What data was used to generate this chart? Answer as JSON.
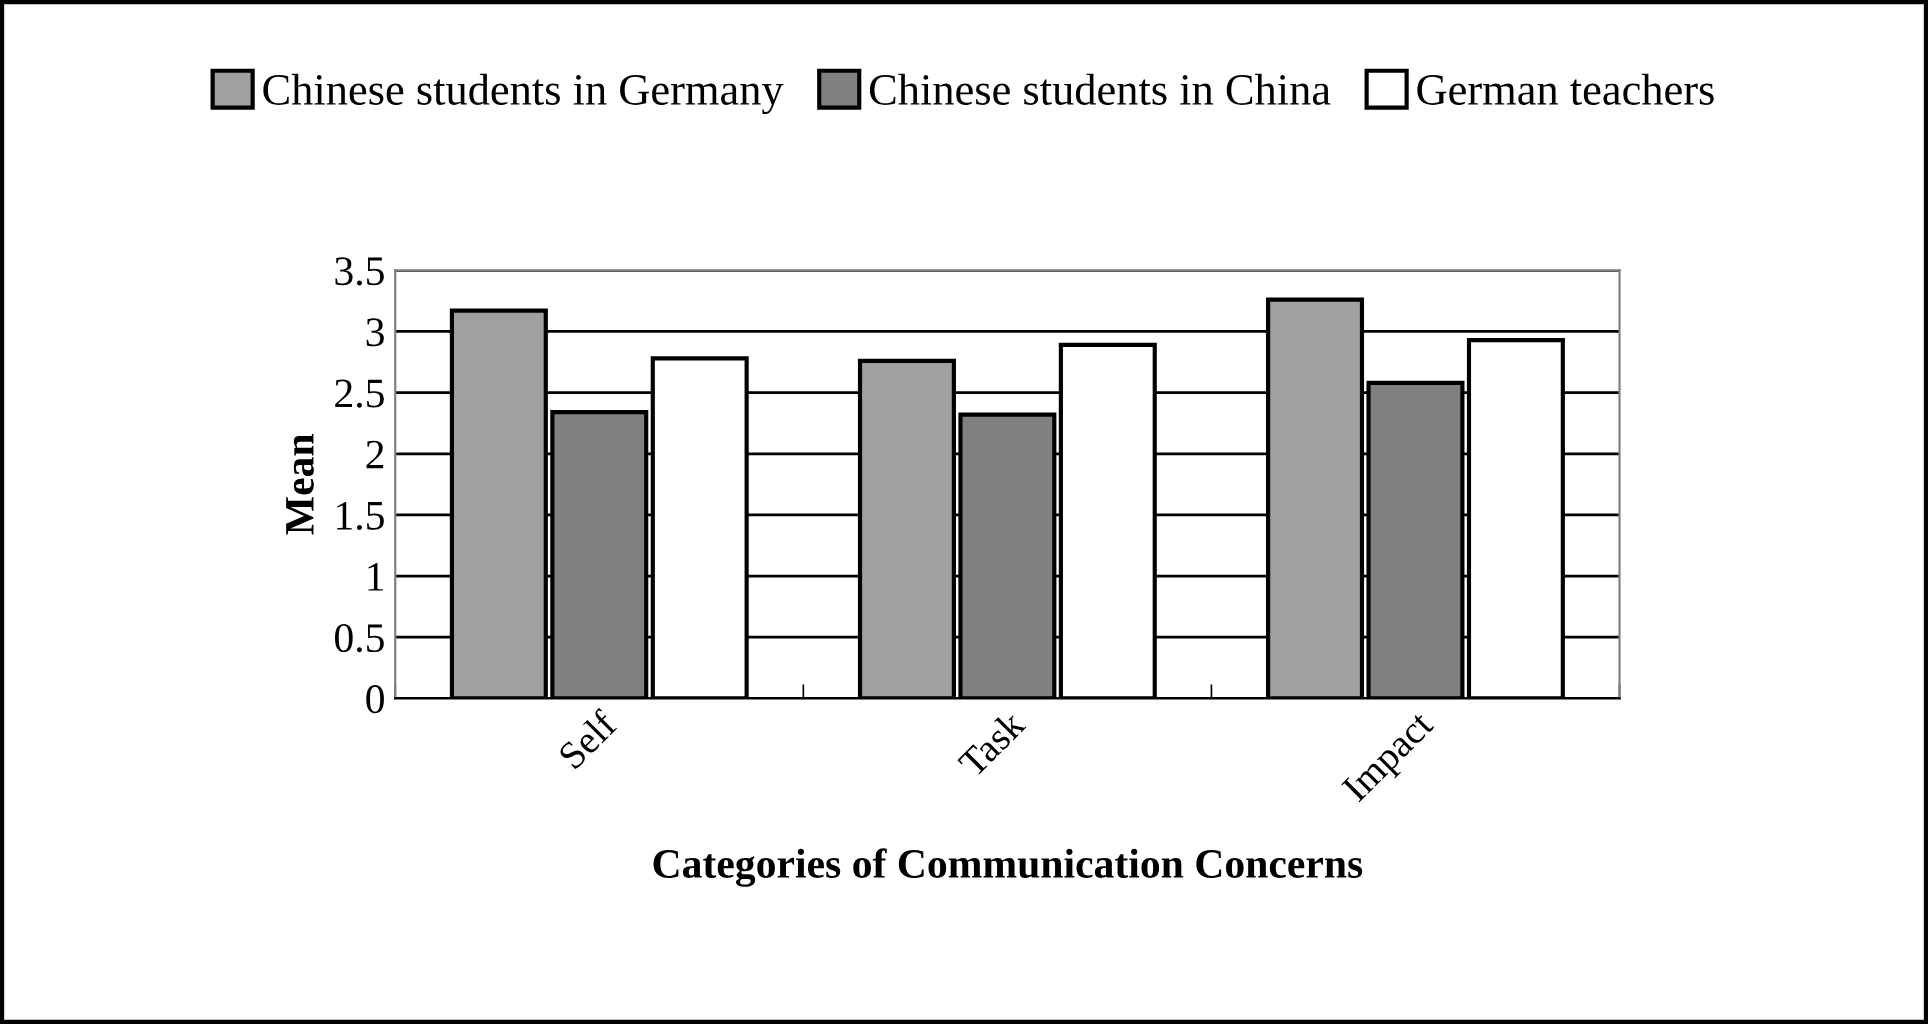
{
  "chart_data": {
    "type": "bar",
    "xlabel": "Categories of Communication Concerns",
    "ylabel": "Mean",
    "categories": [
      "Self",
      "Task",
      "Impact"
    ],
    "series": [
      {
        "name": "Chinese students in Germany",
        "color": "#a0a0a0",
        "values": [
          3.17,
          2.76,
          3.26
        ]
      },
      {
        "name": "Chinese students in China",
        "color": "#808080",
        "values": [
          2.34,
          2.32,
          2.58
        ]
      },
      {
        "name": "German teachers",
        "color": "#ffffff",
        "values": [
          2.78,
          2.89,
          2.93
        ]
      }
    ],
    "ylim": [
      0,
      3.5
    ],
    "yticks": [
      0,
      0.5,
      1,
      1.5,
      2,
      2.5,
      3,
      3.5
    ],
    "grid": "y",
    "legend": "top"
  }
}
